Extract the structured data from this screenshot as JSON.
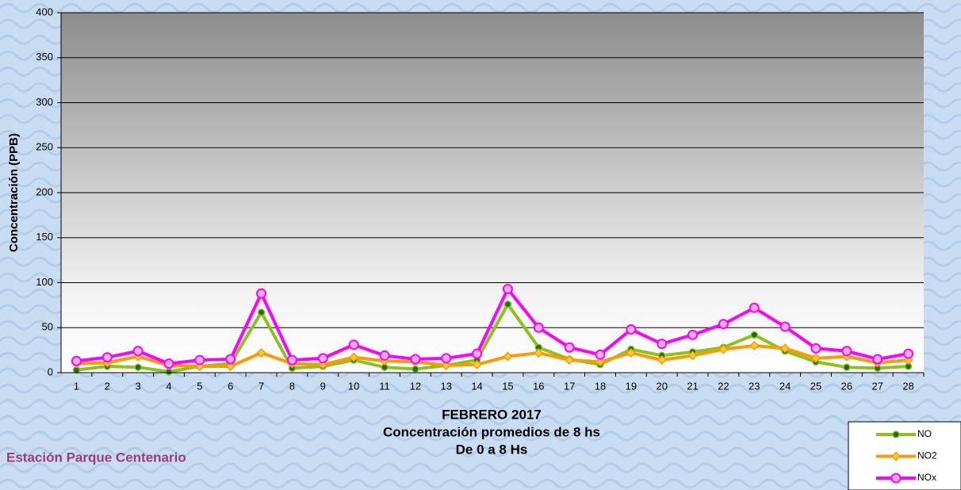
{
  "chart_data": {
    "type": "line",
    "title_lines": [
      "FEBRERO 2017",
      "Concentración promedios de 8 hs",
      "De 0 a 8 Hs"
    ],
    "subtitle": "Estación Parque Centenario",
    "y_label": "Concentración  (PPB)",
    "categories": [
      "1",
      "2",
      "3",
      "4",
      "5",
      "6",
      "7",
      "8",
      "9",
      "10",
      "11",
      "12",
      "13",
      "14",
      "15",
      "16",
      "17",
      "18",
      "19",
      "20",
      "21",
      "22",
      "23",
      "24",
      "25",
      "26",
      "27",
      "28"
    ],
    "series": [
      {
        "name": "NO",
        "color": "#8cc21e",
        "values": [
          3,
          7,
          6,
          1,
          7,
          10,
          67,
          5,
          7,
          14,
          6,
          4,
          8,
          14,
          76,
          28,
          15,
          9,
          26,
          19,
          23,
          28,
          42,
          24,
          12,
          6,
          5,
          7
        ]
      },
      {
        "name": "NO2",
        "color": "#ff9900",
        "values": [
          10,
          11,
          18,
          8,
          7,
          7,
          22,
          10,
          9,
          17,
          13,
          12,
          8,
          9,
          18,
          22,
          14,
          12,
          22,
          14,
          19,
          26,
          30,
          27,
          16,
          18,
          11,
          14
        ]
      },
      {
        "name": "NOx",
        "color": "#ff00ff",
        "values": [
          13,
          17,
          24,
          10,
          14,
          15,
          88,
          14,
          16,
          31,
          19,
          15,
          16,
          21,
          93,
          50,
          28,
          20,
          48,
          32,
          42,
          54,
          72,
          51,
          27,
          24,
          15,
          21
        ]
      }
    ],
    "ylim": [
      0,
      400
    ],
    "yticks": [
      0,
      50,
      100,
      150,
      200,
      250,
      300,
      350,
      400
    ],
    "grid": true,
    "legend": "bottom-right"
  }
}
